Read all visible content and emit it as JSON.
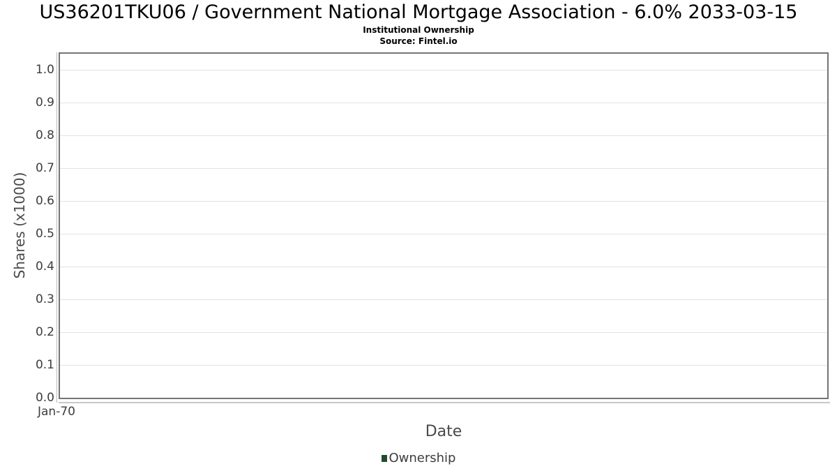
{
  "header": {
    "title": "US36201TKU06 / Government National Mortgage Association - 6.0% 2033-03-15",
    "subtitle": "Institutional Ownership",
    "source": "Source: Fintel.io"
  },
  "chart_data": {
    "type": "line",
    "title": "US36201TKU06 / Government National Mortgage Association - 6.0% 2033-03-15",
    "subtitle": "Institutional Ownership",
    "source": "Source: Fintel.io",
    "xlabel": "Date",
    "ylabel": "Shares (x1000)",
    "ylim": [
      0.0,
      1.05
    ],
    "yticks": [
      0.0,
      0.1,
      0.2,
      0.3,
      0.4,
      0.5,
      0.6,
      0.7,
      0.8,
      0.9,
      1.0
    ],
    "ytick_decimals": 1,
    "xticks": [
      "Jan-70"
    ],
    "grid": true,
    "legend_position": "bottom",
    "series": [
      {
        "name": "Ownership",
        "color": "#1f4d2b",
        "x": [],
        "values": []
      }
    ],
    "colors": {
      "ownership_series": "#1f4d2b",
      "gridline": "#e2e2e2",
      "plot_border": "#757575",
      "axis_line": "#c8c8c8",
      "tick_text": "#3d3d3d",
      "axis_title_text": "#4a4a4a"
    }
  }
}
